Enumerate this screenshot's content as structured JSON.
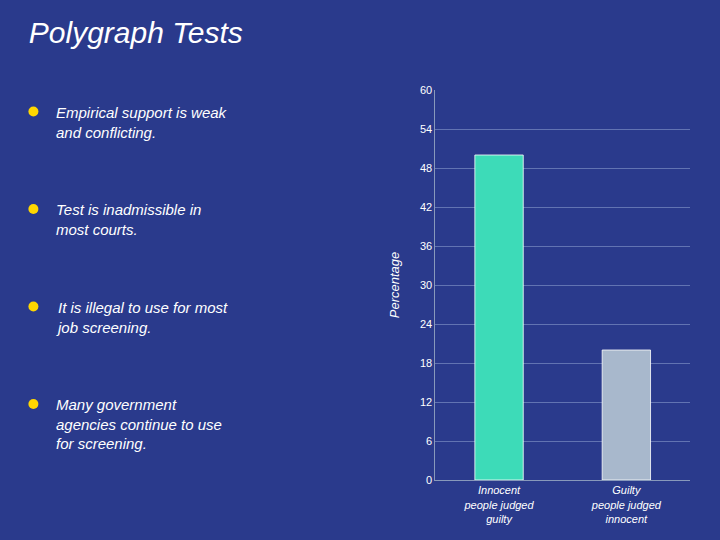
{
  "chart_data": {
    "type": "bar",
    "title": "Polygraph Tests",
    "annotations": [
      "Empirical support is weak\nand conflicting.",
      "Test is inadmissible in\nmost courts.",
      "It is illegal to use for most\njob screening.",
      "Many government\nagencies continue to use\nfor screening."
    ],
    "categories": [
      "Innocent\npeople judged\nguilty",
      "Guilty\npeople judged\ninnocent"
    ],
    "values": [
      50,
      20
    ],
    "colors": [
      "#3DDBB8",
      "#A8B8CC"
    ],
    "ylabel": "Percentage",
    "ylim": [
      0,
      60
    ],
    "yticks": [
      0,
      6,
      12,
      18,
      24,
      30,
      36,
      42,
      48,
      54,
      60
    ],
    "grid": true
  }
}
